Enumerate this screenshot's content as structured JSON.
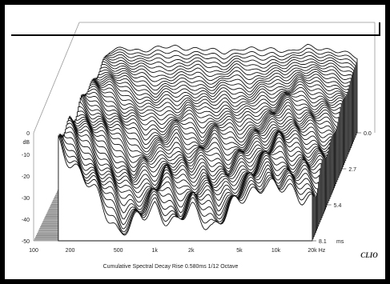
{
  "chart_data": {
    "type": "waterfall",
    "title": "Cumulative Spectral Decay  Rise 0.580ms  1/12 Octave",
    "x_ticks": [
      "100",
      "200",
      "500",
      "1k",
      "2k",
      "5k",
      "10k",
      "20k"
    ],
    "x_tick_values_hz": [
      100,
      200,
      500,
      1000,
      2000,
      5000,
      10000,
      20000
    ],
    "x_unit": "Hz",
    "xlim_hz": [
      100,
      20000
    ],
    "x_scale": "log",
    "y_unit": "dB",
    "y_ticks": [
      "0",
      "-10",
      "-20",
      "-30",
      "-40",
      "-50"
    ],
    "y_tick_values_db": [
      0,
      -10,
      -20,
      -30,
      -40,
      -50
    ],
    "ylim_db": [
      -50,
      0
    ],
    "z_ticks": [
      "0.0",
      "2.7",
      "5.4",
      "8.1"
    ],
    "z_tick_values_ms": [
      0.0,
      2.7,
      5.4,
      8.1
    ],
    "z_unit": "ms",
    "slice_count": 52,
    "envelope_floor_x_hz": [
      160,
      200,
      300,
      500,
      800,
      1000,
      1500,
      2000,
      3000,
      5000,
      8000,
      10000,
      15000,
      20000
    ],
    "envelope_floor_db": [
      -4,
      -12,
      -26,
      -45,
      -40,
      -34,
      -42,
      -36,
      -43,
      -32,
      -22,
      -26,
      -28,
      -30
    ],
    "first_slice_db": [
      -6,
      -4,
      -5,
      -4,
      -3,
      -4,
      -5,
      -6,
      -4,
      -5,
      -4,
      -6,
      -3,
      -4,
      -6,
      -9
    ]
  },
  "brand": {
    "logo_text": "CLIO"
  },
  "colors": {
    "frame": "#000000",
    "background": "#ffffff",
    "curve_stroke": "#111111",
    "floor_line": "#555555",
    "axis_text": "#222222"
  }
}
